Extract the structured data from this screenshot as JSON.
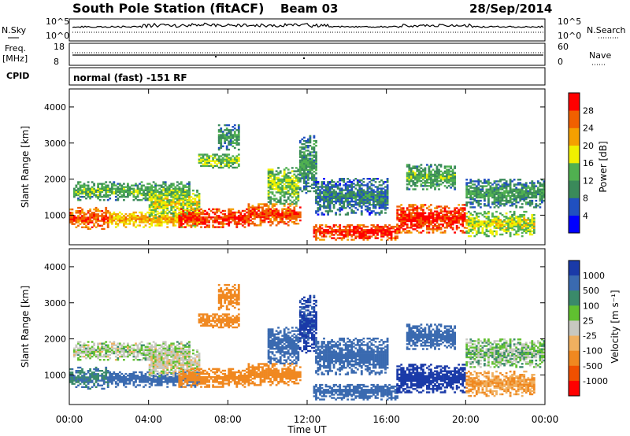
{
  "header": {
    "station": "South Pole Station (fitACF)",
    "beam": "Beam 03",
    "date": "28/Sep/2014"
  },
  "sky_panel": {
    "left_label": "N.Sky",
    "right_label": "N.Search",
    "ticks_left": [
      "10^5",
      "10^0"
    ],
    "ticks_right": [
      "10^5",
      "10^0"
    ]
  },
  "freq_panel": {
    "left_label_1": "Freq.",
    "left_label_2": "[MHz]",
    "right_label": "Nave",
    "ticks_left": [
      "18",
      "8"
    ],
    "ticks_right": [
      "60",
      "0"
    ]
  },
  "cpid_panel": {
    "label": "CPID",
    "mode_text": "normal (fast) -151 RF"
  },
  "power_panel": {
    "ylabel": "Slant Range [km]",
    "yticks": [
      "4000",
      "3000",
      "2000",
      "1000"
    ],
    "colorbar_label": "Power [dB]",
    "colorbar_ticks": [
      "28",
      "24",
      "20",
      "16",
      "12",
      "8",
      "4"
    ],
    "colors": [
      "#0000ff",
      "#2050c0",
      "#3a8a5a",
      "#50b050",
      "#f0f000",
      "#f5a000",
      "#f06000",
      "#ff0000"
    ]
  },
  "velocity_panel": {
    "ylabel": "Slant Range [km]",
    "yticks": [
      "4000",
      "3000",
      "2000",
      "1000"
    ],
    "colorbar_label": "Velocity [m s⁻¹]",
    "colorbar_ticks": [
      "1000",
      "500",
      "100",
      "25",
      "-25",
      "-100",
      "-500",
      "-1000"
    ],
    "colors": [
      "#1a3aa8",
      "#3a6ab0",
      "#3a8a6a",
      "#60c030",
      "#c8c8c0",
      "#f0b060",
      "#f08820",
      "#f05000",
      "#ff0000"
    ]
  },
  "time_axis": {
    "xlabel": "Time UT",
    "ticks": [
      "00:00",
      "04:00",
      "08:00",
      "12:00",
      "16:00",
      "20:00",
      "00:00"
    ]
  },
  "chart_data": {
    "type": "heatmap",
    "title": "South Pole Station (fitACF)",
    "x_range_hours": [
      0,
      24
    ],
    "y_range_km": [
      180,
      4500
    ],
    "xlabel": "Time UT",
    "ylabel": "Slant Range [km]",
    "power_range_db": [
      0,
      32
    ],
    "velocity_range": [
      -1000,
      1000
    ],
    "scatter_regions": [
      {
        "t0": 0.0,
        "t1": 2.0,
        "r0": 600,
        "r1": 1200,
        "power": 24,
        "velocity": 100
      },
      {
        "t0": 0.2,
        "t1": 6.0,
        "r0": 1400,
        "r1": 1900,
        "power": 10,
        "velocity": 0
      },
      {
        "t0": 2.0,
        "t1": 6.5,
        "r0": 650,
        "r1": 1100,
        "power": 18,
        "velocity": 300
      },
      {
        "t0": 4.0,
        "t1": 6.5,
        "r0": 900,
        "r1": 1700,
        "power": 14,
        "velocity": -10
      },
      {
        "t0": 5.5,
        "t1": 9.0,
        "r0": 650,
        "r1": 1150,
        "power": 26,
        "velocity": -300
      },
      {
        "t0": 6.5,
        "t1": 8.5,
        "r0": 2300,
        "r1": 2700,
        "power": 12,
        "velocity": -200
      },
      {
        "t0": 7.5,
        "t1": 8.5,
        "r0": 2800,
        "r1": 3500,
        "power": 8,
        "velocity": -300
      },
      {
        "t0": 9.0,
        "t1": 11.6,
        "r0": 700,
        "r1": 1300,
        "power": 24,
        "velocity": -200
      },
      {
        "t0": 10.0,
        "t1": 11.5,
        "r0": 1300,
        "r1": 2300,
        "power": 12,
        "velocity": 200
      },
      {
        "t0": 11.6,
        "t1": 12.4,
        "r0": 1600,
        "r1": 3200,
        "power": 8,
        "velocity": 600
      },
      {
        "t0": 12.3,
        "t1": 16.5,
        "r0": 300,
        "r1": 750,
        "power": 26,
        "velocity": 300
      },
      {
        "t0": 12.4,
        "t1": 16.0,
        "r0": 1000,
        "r1": 2000,
        "power": 6,
        "velocity": 200
      },
      {
        "t0": 16.5,
        "t1": 20.0,
        "r0": 500,
        "r1": 1300,
        "power": 26,
        "velocity": 800
      },
      {
        "t0": 17.0,
        "t1": 19.5,
        "r0": 1700,
        "r1": 2400,
        "power": 10,
        "velocity": 200
      },
      {
        "t0": 20.0,
        "t1": 23.5,
        "r0": 400,
        "r1": 1100,
        "power": 14,
        "velocity": -100
      },
      {
        "t0": 20.0,
        "t1": 24.0,
        "r0": 1200,
        "r1": 2000,
        "power": 8,
        "velocity": 10
      }
    ]
  }
}
